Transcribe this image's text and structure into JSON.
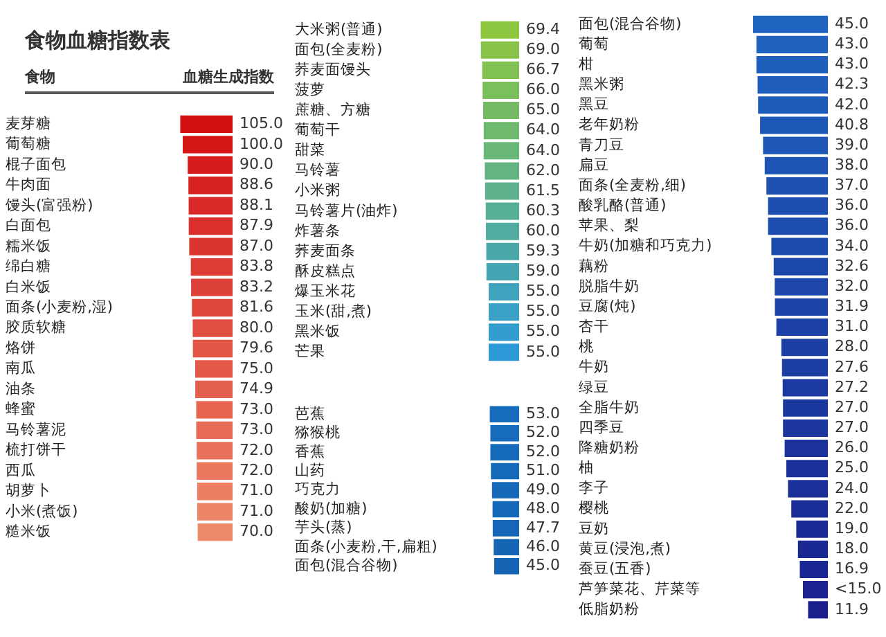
{
  "chart_data": [
    {
      "type": "bar",
      "orientation": "horizontal",
      "title": "食物血糖指数表",
      "ylabel": "食物",
      "xlabel": "血糖生成指数",
      "tick_labels": "y",
      "categories": [
        "麦芽糖",
        "葡萄糖",
        "棍子面包",
        "牛肉面",
        "馒头(富强粉)",
        "白面包",
        "糯米饭",
        "绵白糖",
        "白米饭",
        "面条(小麦粉,湿)",
        "胶质软糖",
        "烙饼",
        "南瓜",
        "油条",
        "蜂蜜",
        "马铃薯泥",
        "梳打饼干",
        "西瓜",
        "胡萝卜",
        "小米(煮饭)",
        "糙米饭"
      ],
      "values": [
        105,
        100,
        90,
        88.6,
        88.1,
        87.9,
        87,
        83.8,
        83.2,
        81.6,
        80,
        79.6,
        75,
        74.9,
        73,
        73,
        72,
        72,
        71,
        71,
        70
      ],
      "value_labels": [
        "105.0",
        "100.0",
        "90.0",
        "88.6",
        "88.1",
        "87.9",
        "87.0",
        "83.8",
        "83.2",
        "81.6",
        "80.0",
        "79.6",
        "75.0",
        "74.9",
        "73.0",
        "73.0",
        "72.0",
        "72.0",
        "71.0",
        "71.0",
        "70.0"
      ],
      "colors": [
        "#d41010",
        "#d51616",
        "#d61c1c",
        "#d82222",
        "#d92929",
        "#da2f2d",
        "#db3531",
        "#dd3b35",
        "#de413a",
        "#df473e",
        "#e14e42",
        "#e25446",
        "#e35a4a",
        "#e4604e",
        "#e66652",
        "#e76c57",
        "#e8725b",
        "#ea785f",
        "#eb7e63",
        "#ec8467",
        "#ee8a6b"
      ]
    },
    {
      "type": "bar",
      "orientation": "horizontal",
      "tick_labels": "y",
      "categories": [
        "大米粥(普通)",
        "面包(全麦粉)",
        "荞麦面馒头",
        "菠萝",
        "蔗糖、方糖",
        "葡萄干",
        "甜菜",
        "马铃薯",
        "小米粥",
        "马铃薯片(油炸)",
        "炸薯条",
        "荞麦面条",
        "酥皮糕点",
        "爆玉米花",
        "玉米(甜,煮)",
        "黑米饭",
        "芒果"
      ],
      "values": [
        69.4,
        69,
        66.7,
        66,
        65,
        64,
        64,
        62,
        61.5,
        60.3,
        60,
        59.3,
        59,
        55,
        55,
        55,
        55
      ],
      "value_labels": [
        "69.4",
        "69.0",
        "66.7",
        "66.0",
        "65.0",
        "64.0",
        "64.0",
        "62.0",
        "61.5",
        "60.3",
        "60.0",
        "59.3",
        "59.0",
        "55.0",
        "55.0",
        "55.0",
        "55.0"
      ],
      "colors": [
        "#8dc63f",
        "#87c349",
        "#81c052",
        "#7bbe5c",
        "#75bb66",
        "#6fb96f",
        "#69b679",
        "#63b383",
        "#5db18c",
        "#57ae96",
        "#51aba0",
        "#4ba8a9",
        "#45a6b3",
        "#3fa3bd",
        "#39a0c6",
        "#339dd0",
        "#2d9ad8"
      ]
    },
    {
      "type": "bar",
      "orientation": "horizontal",
      "tick_labels": "y",
      "categories": [
        "芭蕉",
        "猕猴桃",
        "香蕉",
        "山药",
        "巧克力",
        "酸奶(加糖)",
        "芋头(蒸)",
        "面条(小麦粉,干,扁粗)",
        "面包(混合谷物)"
      ],
      "values": [
        53,
        52,
        52,
        51,
        49,
        48,
        47.7,
        46,
        45
      ],
      "value_labels": [
        "53.0",
        "52.0",
        "52.0",
        "51.0",
        "49.0",
        "48.0",
        "47.7",
        "46.0",
        "45.0"
      ],
      "colors": [
        "#166cbc",
        "#166bbb",
        "#166aba",
        "#1569b9",
        "#1568b8",
        "#1567b7",
        "#1566b6",
        "#1565b5",
        "#1564b4"
      ]
    },
    {
      "type": "bar",
      "orientation": "horizontal",
      "tick_labels": "y",
      "categories": [
        "面包(混合谷物)",
        "葡萄",
        "柑",
        "黑米粥",
        "黑豆",
        "老年奶粉",
        "青刀豆",
        "扁豆",
        "面条(全麦粉,细)",
        "酸乳酪(普通)",
        "苹果、梨",
        "牛奶(加糖和巧克力)",
        "藕粉",
        "脱脂牛奶",
        "豆腐(炖)",
        "杏干",
        "桃",
        "牛奶",
        "绿豆",
        "全脂牛奶",
        "四季豆",
        "降糖奶粉",
        "柚",
        "李子",
        "樱桃",
        "豆奶",
        "黄豆(浸泡,煮)",
        "蚕豆(五香)",
        "芦笋菜花、芹菜等",
        "低脂奶粉"
      ],
      "values": [
        45,
        43,
        43,
        42.3,
        42,
        40.8,
        39,
        38,
        37,
        36,
        36,
        34,
        32.6,
        32,
        31.9,
        31,
        28,
        27.6,
        27.2,
        27,
        27,
        26,
        25,
        24,
        22,
        19,
        18,
        16.9,
        15,
        11.9
      ],
      "value_labels": [
        "45.0",
        "43.0",
        "43.0",
        "42.3",
        "42.0",
        "40.8",
        "39.0",
        "38.0",
        "37.0",
        "36.0",
        "36.0",
        "34.0",
        "32.6",
        "32.0",
        "31.9",
        "31.0",
        "28.0",
        "27.6",
        "27.2",
        "27.0",
        "27.0",
        "26.0",
        "25.0",
        "24.0",
        "22.0",
        "19.0",
        "18.0",
        "16.9",
        "<15.0",
        "11.9"
      ],
      "colors": [
        "#1e64c0",
        "#1e62be",
        "#1e5fbd",
        "#1e5dbb",
        "#1d5bb9",
        "#1d58b7",
        "#1d56b6",
        "#1d54b4",
        "#1d52b2",
        "#1d4fb0",
        "#1d4daf",
        "#1c4bad",
        "#1c48ab",
        "#1c46a9",
        "#1c44a8",
        "#1c41a6",
        "#1c3fa4",
        "#1c3da2",
        "#1c3aa1",
        "#1b389f",
        "#1b369d",
        "#1b339b",
        "#1b319a",
        "#1b2f98",
        "#1b2d96",
        "#1b2a94",
        "#1a2893",
        "#1a2691",
        "#1a238f",
        "#1a1f8c"
      ]
    }
  ]
}
